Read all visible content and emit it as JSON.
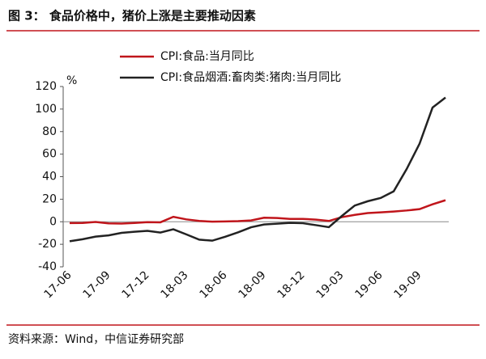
{
  "chart_data": {
    "type": "line",
    "title": "图 3：  食品价格中，猪价上涨是主要推动因素",
    "source": "资料来源：Wind，中信证券研究部",
    "y_unit": "%",
    "categories": [
      "17-06",
      null,
      null,
      "17-09",
      null,
      null,
      "17-12",
      null,
      null,
      "18-03",
      null,
      null,
      "18-06",
      null,
      null,
      "18-09",
      null,
      null,
      "18-12",
      null,
      null,
      "19-03",
      null,
      null,
      "19-06",
      null,
      null,
      "19-09",
      null,
      null
    ],
    "series": [
      {
        "name": "CPI:食品:当月同比",
        "color": "#c0151b",
        "values": [
          -1.2,
          -1.1,
          -0.2,
          -1.4,
          -1.6,
          -1.1,
          -0.4,
          -0.5,
          4.4,
          2.1,
          0.7,
          0.1,
          0.3,
          0.5,
          1.2,
          3.6,
          3.3,
          2.5,
          2.5,
          1.9,
          0.7,
          4.1,
          6.1,
          7.7,
          8.3,
          9.1,
          10.0,
          11.2,
          15.5,
          19.1
        ]
      },
      {
        "name": "CPI:食品烟酒:畜肉类:猪肉:当月同比",
        "color": "#222222",
        "values": [
          -17.3,
          -15.5,
          -13.2,
          -12.1,
          -9.9,
          -8.9,
          -8.1,
          -9.6,
          -6.7,
          -11.2,
          -15.9,
          -16.8,
          -13.3,
          -9.4,
          -4.9,
          -2.4,
          -1.7,
          -1.0,
          -1.3,
          -3.0,
          -4.8,
          5.1,
          14.4,
          18.2,
          21.1,
          27.0,
          46.7,
          69.3,
          101.3,
          110.2
        ]
      }
    ],
    "ylim": [
      -40,
      120
    ],
    "yticks": [
      -40,
      -20,
      0,
      20,
      40,
      60,
      80,
      100,
      120
    ]
  }
}
